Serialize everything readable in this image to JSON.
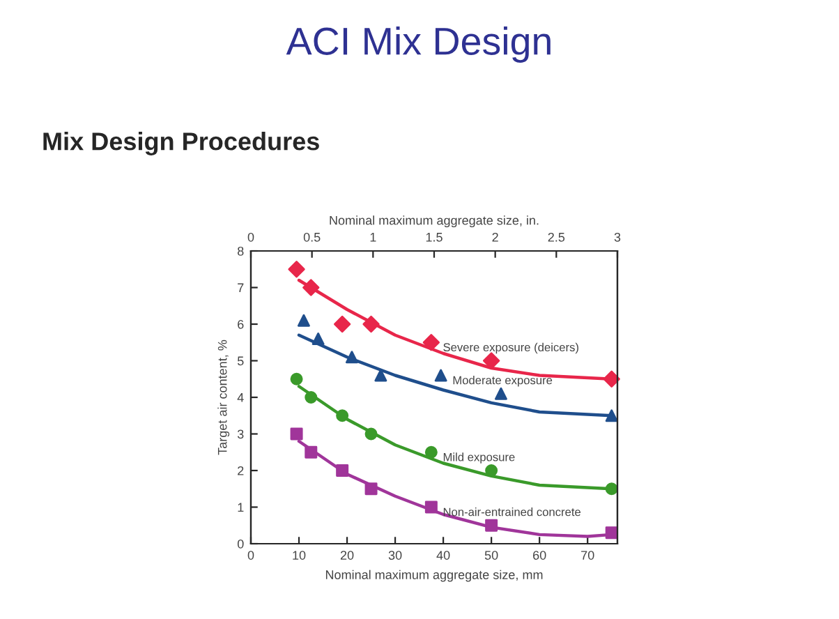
{
  "chart_data": {
    "type": "scatter",
    "title": "ACI Mix Design",
    "subtitle": "Mix Design Procedures",
    "xlabel": "Nominal maximum aggregate size, mm",
    "x2label": "Nominal maximum aggregate size, in.",
    "ylabel": "Target air content, %",
    "xlim": [
      0,
      76.2
    ],
    "xticks": [
      0,
      10,
      20,
      30,
      40,
      50,
      60,
      70
    ],
    "x2lim": [
      0,
      3
    ],
    "x2ticks": [
      0,
      0.5,
      1,
      1.5,
      2,
      2.5,
      3
    ],
    "ylim": [
      0,
      8
    ],
    "yticks": [
      0,
      1,
      2,
      3,
      4,
      5,
      6,
      7,
      8
    ],
    "grid": false,
    "series": [
      {
        "name": "Severe exposure (deicers)",
        "marker": "diamond",
        "color": "#e8264a",
        "x": [
          9.5,
          12.5,
          19,
          25,
          37.5,
          50,
          75
        ],
        "values": [
          7.5,
          7,
          6,
          6,
          5.5,
          5,
          4.5
        ]
      },
      {
        "name": "Moderate exposure",
        "marker": "triangle",
        "color": "#1f4e8c",
        "x": [
          11,
          14,
          21,
          27,
          39.5,
          52,
          75
        ],
        "values": [
          6.1,
          5.6,
          5.1,
          4.6,
          4.6,
          4.1,
          3.5
        ]
      },
      {
        "name": "Mild exposure",
        "marker": "circle",
        "color": "#3a9a2a",
        "x": [
          9.5,
          12.5,
          19,
          25,
          37.5,
          50,
          75
        ],
        "values": [
          4.5,
          4,
          3.5,
          3,
          2.5,
          2,
          1.5
        ]
      },
      {
        "name": "Non-air-entrained concrete",
        "marker": "square",
        "color": "#a0359a",
        "x": [
          9.5,
          12.5,
          19,
          25,
          37.5,
          50,
          75
        ],
        "values": [
          3,
          2.5,
          2,
          1.5,
          1,
          0.5,
          0.3
        ]
      },
      {
        "type": "line",
        "color": "#e8264a",
        "x": [
          10,
          20,
          30,
          40,
          50,
          60,
          75
        ],
        "values": [
          7.2,
          6.4,
          5.7,
          5.2,
          4.8,
          4.6,
          4.5
        ]
      },
      {
        "type": "line",
        "color": "#1f4e8c",
        "x": [
          10,
          20,
          30,
          40,
          50,
          60,
          75
        ],
        "values": [
          5.7,
          5.1,
          4.6,
          4.2,
          3.85,
          3.6,
          3.5
        ]
      },
      {
        "type": "line",
        "color": "#3a9a2a",
        "x": [
          10,
          20,
          30,
          40,
          50,
          60,
          75
        ],
        "values": [
          4.3,
          3.4,
          2.7,
          2.2,
          1.85,
          1.6,
          1.5
        ]
      },
      {
        "type": "line",
        "color": "#a0359a",
        "x": [
          10,
          20,
          30,
          40,
          50,
          60,
          70,
          75
        ],
        "values": [
          2.8,
          1.9,
          1.3,
          0.8,
          0.45,
          0.25,
          0.2,
          0.25
        ]
      }
    ]
  }
}
